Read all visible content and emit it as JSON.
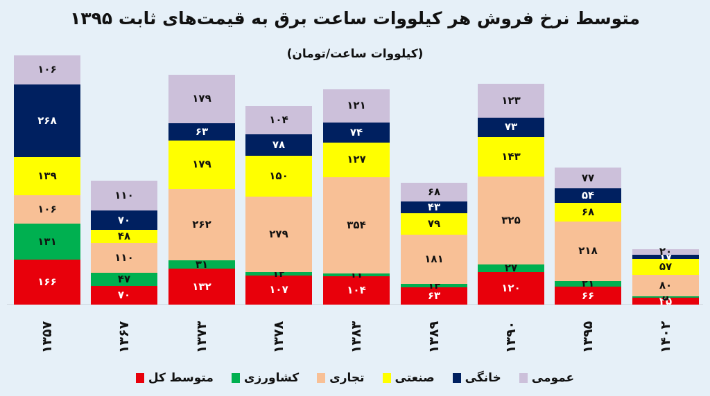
{
  "chart_data": {
    "type": "bar",
    "stacked": true,
    "title": "متوسط نرخ فروش هر کیلووات ساعت برق به قیمت‌های ثابت ۱۳۹۵",
    "subtitle": "(کیلووات ساعت/تومان)",
    "xlabel": "",
    "ylabel": "",
    "grid": false,
    "legend_position": "bottom",
    "categories": [
      "۱۳۵۷",
      "۱۳۶۷",
      "۱۳۷۳",
      "۱۳۷۸",
      "۱۳۸۳",
      "۱۳۸۹",
      "۱۳۹۰",
      "۱۳۹۵",
      "۱۴۰۲"
    ],
    "series": [
      {
        "name": "متوسط کل",
        "color": "#e8000b",
        "text_color": "#ffffff",
        "values": [
          166,
          70,
          132,
          107,
          104,
          63,
          120,
          66,
          25
        ],
        "labels": [
          "۱۶۶",
          "۷۰",
          "۱۳۲",
          "۱۰۷",
          "۱۰۴",
          "۶۳",
          "۱۲۰",
          "۶۶",
          "۲۵"
        ]
      },
      {
        "name": "کشاورزی",
        "color": "#00b050",
        "text_color": "#111111",
        "values": [
          131,
          47,
          31,
          12,
          11,
          14,
          27,
          21,
          5
        ],
        "labels": [
          "۱۳۱",
          "۴۷",
          "۳۱",
          "۱۲",
          "۱۱",
          "۱۴",
          "۲۷",
          "۲۱",
          "۵"
        ]
      },
      {
        "name": "تجاری",
        "color": "#f8c096",
        "text_color": "#111111",
        "values": [
          106,
          110,
          262,
          279,
          354,
          181,
          325,
          218,
          80
        ],
        "labels": [
          "۱۰۶",
          "۱۱۰",
          "۲۶۲",
          "۲۷۹",
          "۳۵۴",
          "۱۸۱",
          "۳۲۵",
          "۲۱۸",
          "۸۰"
        ]
      },
      {
        "name": "صنعتی",
        "color": "#ffff00",
        "text_color": "#111111",
        "values": [
          139,
          48,
          179,
          150,
          127,
          79,
          143,
          68,
          57
        ],
        "labels": [
          "۱۳۹",
          "۴۸",
          "۱۷۹",
          "۱۵۰",
          "۱۲۷",
          "۷۹",
          "۱۴۳",
          "۶۸",
          "۵۷"
        ]
      },
      {
        "name": "خانگی",
        "color": "#002060",
        "text_color": "#ffffff",
        "values": [
          268,
          70,
          63,
          78,
          74,
          43,
          73,
          54,
          17
        ],
        "labels": [
          "۲۶۸",
          "۷۰",
          "۶۳",
          "۷۸",
          "۷۴",
          "۴۳",
          "۷۳",
          "۵۴",
          "۱۷"
        ]
      },
      {
        "name": "عمومی",
        "color": "#ccc0da",
        "text_color": "#111111",
        "values": [
          106,
          110,
          179,
          104,
          121,
          68,
          123,
          77,
          20
        ],
        "labels": [
          "۱۰۶",
          "۱۱۰",
          "۱۷۹",
          "۱۰۴",
          "۱۲۱",
          "۶۸",
          "۱۲۳",
          "۷۷",
          "۲۰"
        ]
      }
    ],
    "legend_order": [
      "عمومی",
      "خانگی",
      "صنعتی",
      "تجاری",
      "کشاورزی",
      "متوسط کل"
    ]
  }
}
